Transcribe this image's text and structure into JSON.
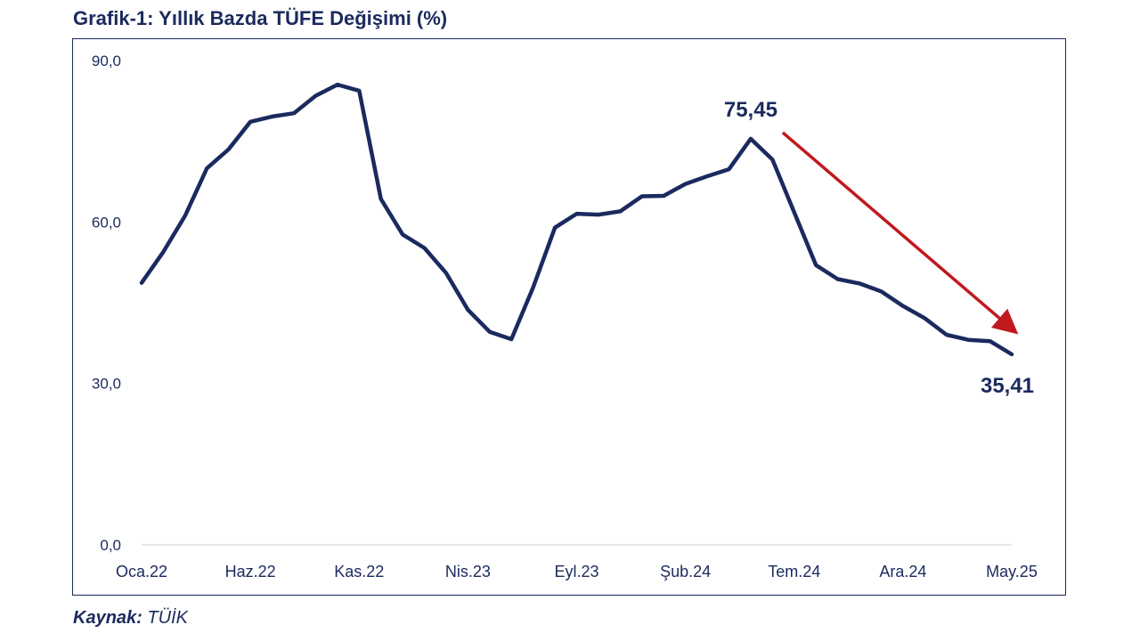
{
  "title": "Grafik-1: Yıllık Bazda TÜFE Değişimi (%)",
  "source": {
    "label": "Kaynak:",
    "value": "TÜİK"
  },
  "colors": {
    "line": "#1b2a5e",
    "arrow": "#c0191e",
    "text": "#1b2a5e",
    "axis": "#d9d9d9"
  },
  "chart_data": {
    "type": "line",
    "title": "Grafik-1: Yıllık Bazda TÜFE Değişimi (%)",
    "xlabel": "",
    "ylabel": "",
    "ylim": [
      0,
      90
    ],
    "yticks": [
      0,
      30,
      60,
      90
    ],
    "ytick_labels": [
      "0,0",
      "30,0",
      "60,0",
      "90,0"
    ],
    "xtick_indices": [
      0,
      5,
      10,
      15,
      20,
      25,
      30,
      35,
      40
    ],
    "xtick_labels": [
      "Oca.22",
      "Haz.22",
      "Kas.22",
      "Nis.23",
      "Eyl.23",
      "Şub.24",
      "Tem.24",
      "Ara.24",
      "May.25"
    ],
    "grid": false,
    "series": [
      {
        "name": "Yıllık TÜFE (%)",
        "x": [
          "Oca.22",
          "Şub.22",
          "Mar.22",
          "Nis.22",
          "May.22",
          "Haz.22",
          "Tem.22",
          "Ağu.22",
          "Eyl.22",
          "Eki.22",
          "Kas.22",
          "Ara.22",
          "Oca.23",
          "Şub.23",
          "Mar.23",
          "Nis.23",
          "May.23",
          "Haz.23",
          "Tem.23",
          "Ağu.23",
          "Eyl.23",
          "Eki.23",
          "Kas.23",
          "Ara.23",
          "Oca.24",
          "Şub.24",
          "Mar.24",
          "Nis.24",
          "May.24",
          "Haz.24",
          "Tem.24",
          "Ağu.24",
          "Eyl.24",
          "Eki.24",
          "Kas.24",
          "Ara.24",
          "Oca.25",
          "Şub.25",
          "Mar.25",
          "Nis.25",
          "May.25"
        ],
        "values": [
          48.69,
          54.44,
          61.14,
          69.97,
          73.5,
          78.62,
          79.6,
          80.21,
          83.45,
          85.51,
          84.39,
          64.27,
          57.68,
          55.18,
          50.51,
          43.68,
          39.59,
          38.21,
          47.83,
          58.94,
          61.53,
          61.36,
          61.98,
          64.77,
          64.86,
          67.07,
          68.5,
          69.8,
          75.45,
          71.6,
          61.78,
          51.97,
          49.38,
          48.58,
          47.09,
          44.38,
          42.12,
          39.05,
          38.1,
          37.86,
          35.41
        ]
      }
    ],
    "annotations": [
      {
        "label": "75,45",
        "index": 28,
        "value": 75.45
      },
      {
        "label": "35,41",
        "index": 40,
        "value": 35.41
      }
    ],
    "arrow": {
      "from_index": 28,
      "to_index": 40,
      "direction": "down",
      "color": "#c0191e"
    }
  }
}
